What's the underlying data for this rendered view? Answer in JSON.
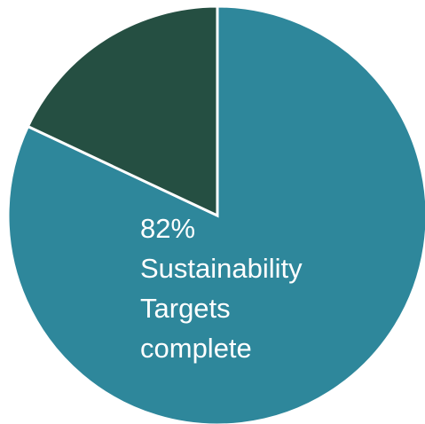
{
  "chart_data": {
    "type": "pie",
    "slices": [
      {
        "value": 82,
        "color": "#2E879B"
      },
      {
        "value": 18,
        "color": "#254F42"
      }
    ],
    "label_lines": [
      "82%",
      "Sustainability",
      "Targets",
      "complete"
    ],
    "start_angle_deg": 0,
    "direction": "clockwise"
  }
}
